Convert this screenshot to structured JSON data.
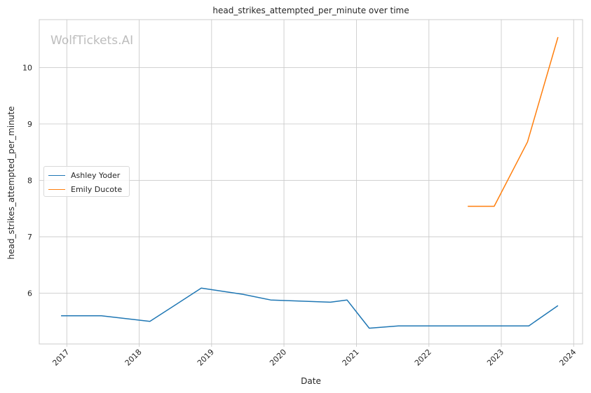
{
  "chart_data": {
    "type": "line",
    "title": "head_strikes_attempted_per_minute over time",
    "xlabel": "Date",
    "ylabel": "head_strikes_attempted_per_minute",
    "watermark": "WolfTickets.AI",
    "x_ticks": [
      "2017",
      "2018",
      "2019",
      "2020",
      "2021",
      "2022",
      "2023",
      "2024"
    ],
    "y_ticks": [
      6,
      7,
      8,
      9,
      10
    ],
    "xlim": [
      "2016-08-15",
      "2024-02-15"
    ],
    "ylim": [
      5.1,
      10.85
    ],
    "grid": true,
    "legend_position": "center-left",
    "series": [
      {
        "name": "Ashley Yoder",
        "color": "#1f77b4",
        "points": [
          {
            "x": "2016-12-03",
            "y": 5.6
          },
          {
            "x": "2017-06-24",
            "y": 5.6
          },
          {
            "x": "2018-02-24",
            "y": 5.5
          },
          {
            "x": "2018-11-10",
            "y": 6.09
          },
          {
            "x": "2019-06-08",
            "y": 5.98
          },
          {
            "x": "2019-10-26",
            "y": 5.88
          },
          {
            "x": "2020-08-22",
            "y": 5.84
          },
          {
            "x": "2020-11-14",
            "y": 5.88
          },
          {
            "x": "2021-03-06",
            "y": 5.38
          },
          {
            "x": "2021-07-31",
            "y": 5.42
          },
          {
            "x": "2022-11-19",
            "y": 5.42
          },
          {
            "x": "2023-05-20",
            "y": 5.42
          },
          {
            "x": "2023-10-14",
            "y": 5.78
          }
        ]
      },
      {
        "name": "Emily Ducote",
        "color": "#ff7f0e",
        "points": [
          {
            "x": "2022-07-16",
            "y": 7.54
          },
          {
            "x": "2022-11-26",
            "y": 7.54
          },
          {
            "x": "2023-05-13",
            "y": 8.68
          },
          {
            "x": "2023-10-14",
            "y": 10.54
          }
        ]
      }
    ]
  }
}
